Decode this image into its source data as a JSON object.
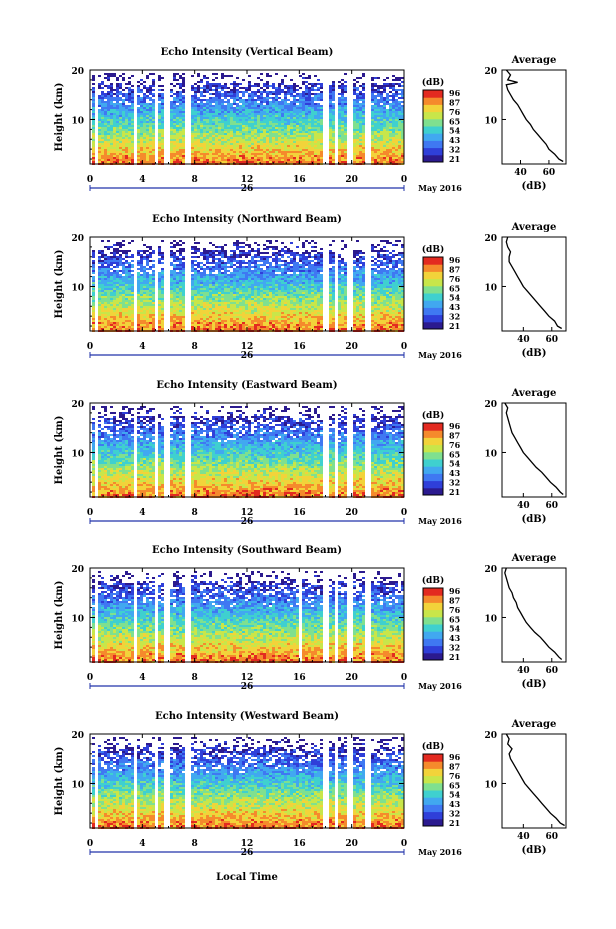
{
  "colors": {
    "scale": [
      "#2b1a8f",
      "#2f3fd9",
      "#3f78f2",
      "#41a8f0",
      "#3fd0cf",
      "#7fe08f",
      "#c8e64a",
      "#f2d33a",
      "#f58a2c",
      "#e32a20"
    ]
  },
  "shared": {
    "y_axis_label": "Height (km)",
    "date_label": "26",
    "month_label": "May 2016",
    "x_axis_title": "Local Time",
    "avg_title": "Average",
    "avg_xlabel": "(dB)",
    "cbar_title": "(dB)"
  },
  "chart_data": [
    {
      "type": "heatmap",
      "title": "Echo Intensity (Vertical Beam)",
      "x_ticks": [
        "0",
        "4",
        "8",
        "12",
        "16",
        "20",
        "0"
      ],
      "y_ticks": [
        "20",
        "10"
      ],
      "xlim": [
        0,
        24
      ],
      "ylim": [
        1,
        20
      ],
      "colorbar_ticks": [
        "96",
        "87",
        "76",
        "65",
        "54",
        "43",
        "32",
        "21"
      ],
      "gaps_hours": [
        [
          0.3,
          0.5
        ],
        [
          3.2,
          3.5
        ],
        [
          4.8,
          5.1
        ],
        [
          5.6,
          6.0
        ],
        [
          7.2,
          7.6
        ],
        [
          17.8,
          18.1
        ],
        [
          18.6,
          18.9
        ],
        [
          19.6,
          20.0
        ],
        [
          21.0,
          21.3
        ]
      ],
      "profile": {
        "x_ticks": [
          "40",
          "60"
        ],
        "y_ticks": [
          "20",
          "10"
        ],
        "xlim": [
          27,
          72
        ],
        "ylim": [
          1,
          20
        ],
        "heights": [
          1.5,
          2,
          3,
          4,
          5,
          6,
          7,
          8,
          9,
          10,
          11,
          12,
          13,
          14,
          15,
          16,
          17,
          17.5,
          18,
          19,
          20
        ],
        "values": [
          70,
          67,
          64,
          60,
          58,
          55,
          52,
          49,
          47,
          44,
          42,
          40,
          38,
          35,
          33,
          31,
          30,
          38,
          31,
          33,
          30
        ]
      }
    },
    {
      "type": "heatmap",
      "title": "Echo Intensity (Northward Beam)",
      "x_ticks": [
        "0",
        "4",
        "8",
        "12",
        "16",
        "20",
        "0"
      ],
      "y_ticks": [
        "20",
        "10"
      ],
      "xlim": [
        0,
        24
      ],
      "ylim": [
        1,
        20
      ],
      "colorbar_ticks": [
        "96",
        "87",
        "76",
        "65",
        "54",
        "43",
        "32",
        "21"
      ],
      "gaps_hours": [
        [
          0.3,
          0.5
        ],
        [
          3.2,
          3.5
        ],
        [
          4.8,
          5.1
        ],
        [
          5.6,
          6.0
        ],
        [
          7.2,
          7.6
        ],
        [
          17.8,
          18.1
        ],
        [
          18.6,
          18.9
        ],
        [
          19.6,
          20.0
        ],
        [
          21.0,
          21.3
        ]
      ],
      "profile": {
        "x_ticks": [
          "40",
          "60"
        ],
        "y_ticks": [
          "20",
          "10"
        ],
        "xlim": [
          25,
          70
        ],
        "ylim": [
          1,
          20
        ],
        "heights": [
          1.5,
          2,
          3,
          4,
          5,
          6,
          7,
          8,
          9,
          10,
          11,
          12,
          13,
          14,
          15,
          16,
          17,
          18,
          19,
          20
        ],
        "values": [
          67,
          64,
          62,
          58,
          55,
          52,
          49,
          46,
          43,
          40,
          38,
          36,
          34,
          32,
          30,
          30,
          31,
          29,
          28,
          29
        ]
      }
    },
    {
      "type": "heatmap",
      "title": "Echo Intensity (Eastward Beam)",
      "x_ticks": [
        "0",
        "4",
        "8",
        "12",
        "16",
        "20",
        "0"
      ],
      "y_ticks": [
        "20",
        "10"
      ],
      "xlim": [
        0,
        24
      ],
      "ylim": [
        1,
        20
      ],
      "colorbar_ticks": [
        "96",
        "87",
        "76",
        "65",
        "54",
        "43",
        "32",
        "21"
      ],
      "gaps_hours": [
        [
          0.3,
          0.5
        ],
        [
          3.2,
          3.5
        ],
        [
          4.8,
          5.1
        ],
        [
          5.6,
          6.0
        ],
        [
          7.2,
          7.6
        ],
        [
          17.8,
          18.1
        ],
        [
          18.6,
          18.9
        ],
        [
          19.6,
          20.0
        ],
        [
          21.0,
          21.3
        ]
      ],
      "profile": {
        "x_ticks": [
          "40",
          "60"
        ],
        "y_ticks": [
          "20",
          "10"
        ],
        "xlim": [
          25,
          70
        ],
        "ylim": [
          1,
          20
        ],
        "heights": [
          1.5,
          2,
          3,
          4,
          5,
          6,
          7,
          8,
          9,
          10,
          11,
          12,
          13,
          14,
          15,
          16,
          17,
          18,
          19,
          20
        ],
        "values": [
          68,
          66,
          63,
          59,
          56,
          53,
          49,
          46,
          43,
          40,
          38,
          36,
          34,
          32,
          31,
          30,
          29,
          28,
          29,
          27
        ]
      }
    },
    {
      "type": "heatmap",
      "title": "Echo Intensity (Southward Beam)",
      "x_ticks": [
        "0",
        "4",
        "8",
        "12",
        "16",
        "20",
        "0"
      ],
      "y_ticks": [
        "20",
        "10"
      ],
      "xlim": [
        0,
        24
      ],
      "ylim": [
        1,
        20
      ],
      "colorbar_ticks": [
        "96",
        "87",
        "76",
        "65",
        "54",
        "43",
        "32",
        "21"
      ],
      "gaps_hours": [
        [
          0.3,
          0.5
        ],
        [
          3.2,
          3.5
        ],
        [
          4.8,
          5.1
        ],
        [
          5.6,
          6.0
        ],
        [
          7.2,
          7.6
        ],
        [
          15.8,
          16.1
        ],
        [
          17.8,
          18.1
        ],
        [
          18.6,
          18.9
        ],
        [
          19.6,
          20.0
        ],
        [
          21.0,
          21.3
        ]
      ],
      "profile": {
        "x_ticks": [
          "40",
          "60"
        ],
        "y_ticks": [
          "20",
          "10"
        ],
        "xlim": [
          25,
          70
        ],
        "ylim": [
          1,
          20
        ],
        "heights": [
          1.5,
          2,
          3,
          4,
          5,
          6,
          7,
          8,
          9,
          10,
          11,
          12,
          13,
          14,
          15,
          16,
          17,
          18,
          19,
          20
        ],
        "values": [
          67,
          65,
          62,
          58,
          55,
          52,
          48,
          45,
          42,
          40,
          38,
          36,
          35,
          33,
          32,
          30,
          29,
          28,
          27,
          28
        ]
      }
    },
    {
      "type": "heatmap",
      "title": "Echo Intensity (Westward Beam)",
      "x_ticks": [
        "0",
        "4",
        "8",
        "12",
        "16",
        "20",
        "0"
      ],
      "y_ticks": [
        "20",
        "10"
      ],
      "xlim": [
        0,
        24
      ],
      "ylim": [
        1,
        20
      ],
      "colorbar_ticks": [
        "96",
        "87",
        "76",
        "65",
        "54",
        "43",
        "32",
        "21"
      ],
      "gaps_hours": [
        [
          0.3,
          0.5
        ],
        [
          3.2,
          3.5
        ],
        [
          4.8,
          5.1
        ],
        [
          5.6,
          6.0
        ],
        [
          7.2,
          7.6
        ],
        [
          17.8,
          18.1
        ],
        [
          18.6,
          18.9
        ],
        [
          19.6,
          20.0
        ],
        [
          21.0,
          21.3
        ]
      ],
      "profile": {
        "x_ticks": [
          "40",
          "60"
        ],
        "y_ticks": [
          "20",
          "10"
        ],
        "xlim": [
          25,
          70
        ],
        "ylim": [
          1,
          20
        ],
        "heights": [
          1.5,
          2,
          3,
          4,
          5,
          6,
          7,
          8,
          9,
          10,
          11,
          12,
          13,
          14,
          15,
          16,
          17,
          18,
          19,
          20
        ],
        "values": [
          69,
          66,
          63,
          59,
          56,
          53,
          50,
          47,
          44,
          41,
          39,
          37,
          35,
          33,
          31,
          30,
          32,
          29,
          30,
          28
        ]
      }
    }
  ]
}
